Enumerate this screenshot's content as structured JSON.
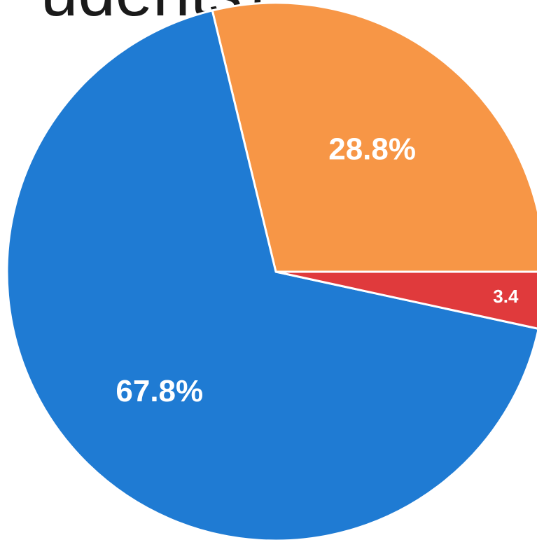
{
  "chart_data": {
    "type": "pie",
    "title_fragment": "udents)",
    "slices": [
      {
        "label": "28.8%",
        "value": 28.8,
        "color": "#F79646"
      },
      {
        "label": "67.8%",
        "value": 67.8,
        "color": "#1F7BD3"
      },
      {
        "label": "3.4",
        "value": 3.4,
        "color": "#E03A3C"
      }
    ]
  }
}
